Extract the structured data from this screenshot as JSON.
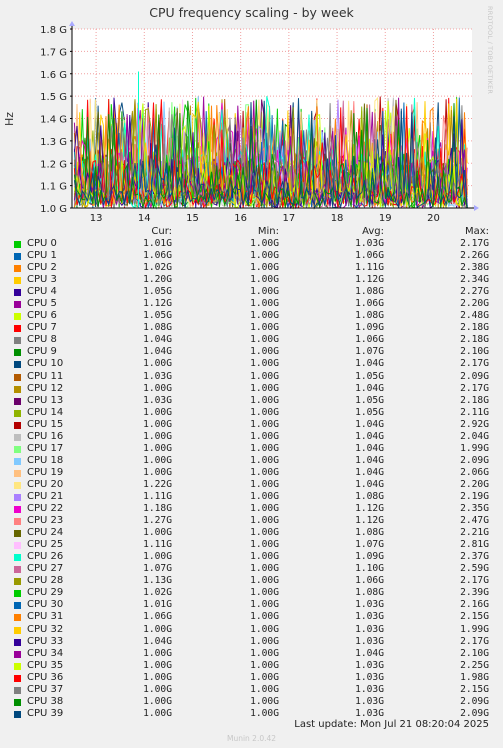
{
  "chart_data": {
    "type": "line",
    "title": "CPU frequency scaling - by week",
    "ylabel": "Hz",
    "ylim": [
      1.0,
      1.8
    ],
    "y_ticks": [
      "1.0 G",
      "1.1 G",
      "1.2 G",
      "1.3 G",
      "1.4 G",
      "1.5 G",
      "1.6 G",
      "1.7 G",
      "1.8 G"
    ],
    "y_tick_values": [
      1.0,
      1.1,
      1.2,
      1.3,
      1.4,
      1.5,
      1.6,
      1.7,
      1.8
    ],
    "x_ticks": [
      "13",
      "14",
      "15",
      "16",
      "17",
      "18",
      "19",
      "20"
    ],
    "x_tick_positions_days": [
      0.5,
      1.5,
      2.5,
      3.5,
      4.5,
      5.5,
      6.5,
      7.5
    ],
    "x_range_days": [
      0.0,
      8.3
    ],
    "grid": true,
    "legend_columns": [
      "Cur:",
      "Min:",
      "Avg:",
      "Max:"
    ],
    "series": [
      {
        "name": "CPU 0",
        "color": "#00cc00",
        "cur": "1.01G",
        "min": "1.00G",
        "avg": "1.03G",
        "max": "2.17G"
      },
      {
        "name": "CPU 1",
        "color": "#0066b3",
        "cur": "1.06G",
        "min": "1.00G",
        "avg": "1.06G",
        "max": "2.26G"
      },
      {
        "name": "CPU 2",
        "color": "#ff8000",
        "cur": "1.02G",
        "min": "1.00G",
        "avg": "1.11G",
        "max": "2.38G"
      },
      {
        "name": "CPU 3",
        "color": "#ffcc00",
        "cur": "1.20G",
        "min": "1.00G",
        "avg": "1.12G",
        "max": "2.34G"
      },
      {
        "name": "CPU 4",
        "color": "#330099",
        "cur": "1.05G",
        "min": "1.00G",
        "avg": "1.08G",
        "max": "2.27G"
      },
      {
        "name": "CPU 5",
        "color": "#990099",
        "cur": "1.12G",
        "min": "1.00G",
        "avg": "1.06G",
        "max": "2.20G"
      },
      {
        "name": "CPU 6",
        "color": "#ccff00",
        "cur": "1.05G",
        "min": "1.00G",
        "avg": "1.08G",
        "max": "2.48G"
      },
      {
        "name": "CPU 7",
        "color": "#ff0000",
        "cur": "1.08G",
        "min": "1.00G",
        "avg": "1.09G",
        "max": "2.18G"
      },
      {
        "name": "CPU 8",
        "color": "#808080",
        "cur": "1.04G",
        "min": "1.00G",
        "avg": "1.06G",
        "max": "2.18G"
      },
      {
        "name": "CPU 9",
        "color": "#008f00",
        "cur": "1.04G",
        "min": "1.00G",
        "avg": "1.07G",
        "max": "2.10G"
      },
      {
        "name": "CPU 10",
        "color": "#00487d",
        "cur": "1.00G",
        "min": "1.00G",
        "avg": "1.04G",
        "max": "2.17G"
      },
      {
        "name": "CPU 11",
        "color": "#b35a00",
        "cur": "1.03G",
        "min": "1.00G",
        "avg": "1.05G",
        "max": "2.09G"
      },
      {
        "name": "CPU 12",
        "color": "#b38f00",
        "cur": "1.00G",
        "min": "1.00G",
        "avg": "1.04G",
        "max": "2.17G"
      },
      {
        "name": "CPU 13",
        "color": "#6b006b",
        "cur": "1.03G",
        "min": "1.00G",
        "avg": "1.05G",
        "max": "2.18G"
      },
      {
        "name": "CPU 14",
        "color": "#8fb300",
        "cur": "1.00G",
        "min": "1.00G",
        "avg": "1.05G",
        "max": "2.11G"
      },
      {
        "name": "CPU 15",
        "color": "#b30000",
        "cur": "1.00G",
        "min": "1.00G",
        "avg": "1.04G",
        "max": "2.92G"
      },
      {
        "name": "CPU 16",
        "color": "#bebebe",
        "cur": "1.00G",
        "min": "1.00G",
        "avg": "1.04G",
        "max": "2.04G"
      },
      {
        "name": "CPU 17",
        "color": "#80ff80",
        "cur": "1.00G",
        "min": "1.00G",
        "avg": "1.04G",
        "max": "1.99G"
      },
      {
        "name": "CPU 18",
        "color": "#80c9ff",
        "cur": "1.00G",
        "min": "1.00G",
        "avg": "1.04G",
        "max": "2.09G"
      },
      {
        "name": "CPU 19",
        "color": "#ffc080",
        "cur": "1.00G",
        "min": "1.00G",
        "avg": "1.04G",
        "max": "2.06G"
      },
      {
        "name": "CPU 20",
        "color": "#ffe680",
        "cur": "1.22G",
        "min": "1.00G",
        "avg": "1.04G",
        "max": "2.20G"
      },
      {
        "name": "CPU 21",
        "color": "#aa80ff",
        "cur": "1.11G",
        "min": "1.00G",
        "avg": "1.08G",
        "max": "2.19G"
      },
      {
        "name": "CPU 22",
        "color": "#ee00cc",
        "cur": "1.18G",
        "min": "1.00G",
        "avg": "1.12G",
        "max": "2.35G"
      },
      {
        "name": "CPU 23",
        "color": "#ff8080",
        "cur": "1.27G",
        "min": "1.00G",
        "avg": "1.12G",
        "max": "2.47G"
      },
      {
        "name": "CPU 24",
        "color": "#666600",
        "cur": "1.00G",
        "min": "1.00G",
        "avg": "1.08G",
        "max": "2.21G"
      },
      {
        "name": "CPU 25",
        "color": "#ffbfff",
        "cur": "1.11G",
        "min": "1.00G",
        "avg": "1.07G",
        "max": "2.81G"
      },
      {
        "name": "CPU 26",
        "color": "#00ffcc",
        "cur": "1.00G",
        "min": "1.00G",
        "avg": "1.09G",
        "max": "2.37G"
      },
      {
        "name": "CPU 27",
        "color": "#cc6699",
        "cur": "1.07G",
        "min": "1.00G",
        "avg": "1.10G",
        "max": "2.59G"
      },
      {
        "name": "CPU 28",
        "color": "#999900",
        "cur": "1.13G",
        "min": "1.00G",
        "avg": "1.06G",
        "max": "2.17G"
      },
      {
        "name": "CPU 29",
        "color": "#00cc00",
        "cur": "1.02G",
        "min": "1.00G",
        "avg": "1.08G",
        "max": "2.39G"
      },
      {
        "name": "CPU 30",
        "color": "#0066b3",
        "cur": "1.01G",
        "min": "1.00G",
        "avg": "1.03G",
        "max": "2.16G"
      },
      {
        "name": "CPU 31",
        "color": "#ff8000",
        "cur": "1.06G",
        "min": "1.00G",
        "avg": "1.03G",
        "max": "2.15G"
      },
      {
        "name": "CPU 32",
        "color": "#ffcc00",
        "cur": "1.00G",
        "min": "1.00G",
        "avg": "1.03G",
        "max": "1.99G"
      },
      {
        "name": "CPU 33",
        "color": "#330099",
        "cur": "1.04G",
        "min": "1.00G",
        "avg": "1.03G",
        "max": "2.17G"
      },
      {
        "name": "CPU 34",
        "color": "#990099",
        "cur": "1.00G",
        "min": "1.00G",
        "avg": "1.04G",
        "max": "2.10G"
      },
      {
        "name": "CPU 35",
        "color": "#ccff00",
        "cur": "1.00G",
        "min": "1.00G",
        "avg": "1.03G",
        "max": "2.25G"
      },
      {
        "name": "CPU 36",
        "color": "#ff0000",
        "cur": "1.00G",
        "min": "1.00G",
        "avg": "1.03G",
        "max": "1.98G"
      },
      {
        "name": "CPU 37",
        "color": "#808080",
        "cur": "1.00G",
        "min": "1.00G",
        "avg": "1.03G",
        "max": "2.15G"
      },
      {
        "name": "CPU 38",
        "color": "#008f00",
        "cur": "1.00G",
        "min": "1.00G",
        "avg": "1.03G",
        "max": "2.09G"
      },
      {
        "name": "CPU 39",
        "color": "#00487d",
        "cur": "1.00G",
        "min": "1.00G",
        "avg": "1.03G",
        "max": "2.09G"
      }
    ]
  },
  "side_label": "RRDTOOL / TOBI OETIKER",
  "last_update": "Last update: Mon Jul 21 08:20:04 2025",
  "footer": "Munin 2.0.42"
}
